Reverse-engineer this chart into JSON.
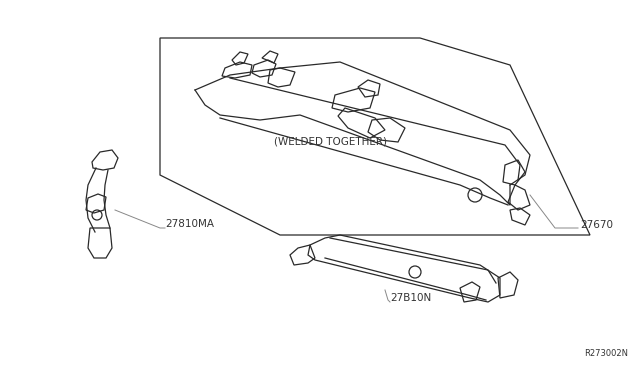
{
  "bg_color": "#ffffff",
  "line_color": "#2a2a2a",
  "text_color": "#333333",
  "leader_color": "#888888",
  "fig_width": 6.4,
  "fig_height": 3.72,
  "dpi": 100,
  "labels": {
    "welded_together": "(WELDED TOGETHER)",
    "part_27810MA": "27810MA",
    "part_27B10N": "27B10N",
    "part_27670": "27670",
    "ref_code": "R273002N"
  }
}
